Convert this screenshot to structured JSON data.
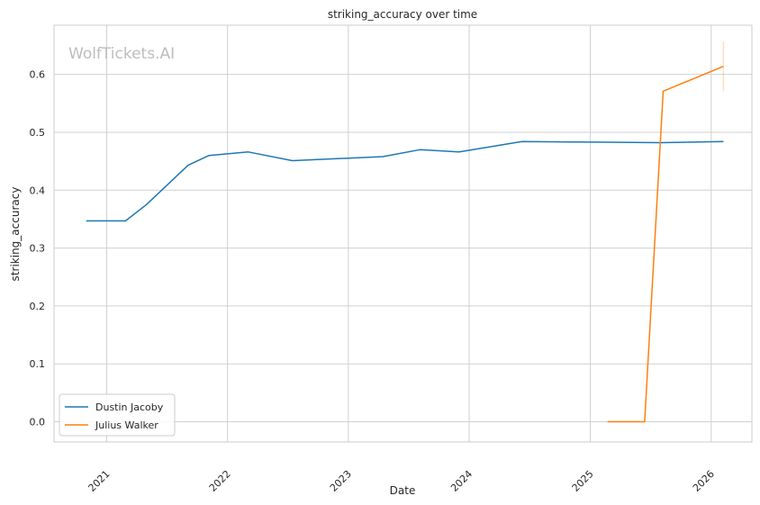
{
  "chart_data": {
    "type": "line",
    "title": "striking_accuracy over time",
    "xlabel": "Date",
    "ylabel": "striking_accuracy",
    "watermark": "WolfTickets.AI",
    "x_ticks": [
      "2021",
      "2022",
      "2023",
      "2024",
      "2025",
      "2026"
    ],
    "y_ticks": [
      "0.0",
      "0.1",
      "0.2",
      "0.3",
      "0.4",
      "0.5",
      "0.6"
    ],
    "ylim": [
      -0.035,
      0.685
    ],
    "xlim": [
      "2020-07-26",
      "2026-05-04"
    ],
    "grid": true,
    "legend_position": "lower-left",
    "series": [
      {
        "name": "Dustin Jacoby",
        "color": "#1f77b4",
        "points": [
          {
            "x": "2020-10-31",
            "y": 0.347
          },
          {
            "x": "2021-02-27",
            "y": 0.347
          },
          {
            "x": "2021-05-01",
            "y": 0.375
          },
          {
            "x": "2021-09-04",
            "y": 0.443
          },
          {
            "x": "2021-11-06",
            "y": 0.46
          },
          {
            "x": "2022-03-05",
            "y": 0.466
          },
          {
            "x": "2022-07-16",
            "y": 0.451
          },
          {
            "x": "2023-04-15",
            "y": 0.458
          },
          {
            "x": "2023-08-05",
            "y": 0.47
          },
          {
            "x": "2023-12-02",
            "y": 0.466
          },
          {
            "x": "2024-06-08",
            "y": 0.484
          },
          {
            "x": "2025-01-18",
            "y": 0.483
          },
          {
            "x": "2025-08-02",
            "y": 0.482
          },
          {
            "x": "2026-02-07",
            "y": 0.484
          }
        ]
      },
      {
        "name": "Julius Walker",
        "color": "#ff7f0e",
        "points": [
          {
            "x": "2025-02-22",
            "y": 0.0
          },
          {
            "x": "2025-06-14",
            "y": 0.0
          },
          {
            "x": "2025-08-09",
            "y": 0.571
          },
          {
            "x": "2026-02-07",
            "y": 0.614
          }
        ],
        "error_band": {
          "x": "2026-02-07",
          "low": 0.571,
          "high": 0.657
        }
      }
    ]
  }
}
